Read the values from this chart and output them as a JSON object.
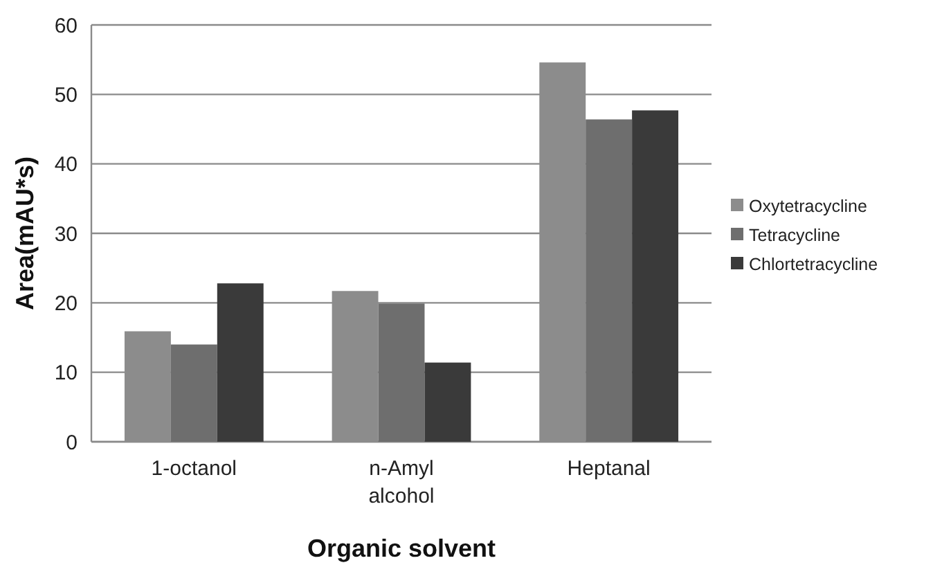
{
  "chart_data": {
    "type": "bar",
    "xlabel": "Organic solvent",
    "ylabel": "Area(mAU*s)",
    "categories": [
      "1-octanol",
      "n-Amyl alcohol",
      "Heptanal"
    ],
    "series": [
      {
        "name": "Oxytetracycline",
        "color": "#8c8c8c",
        "values": [
          15.9,
          21.7,
          54.6
        ]
      },
      {
        "name": "Tetracycline",
        "color": "#6e6e6e",
        "values": [
          14,
          19.9,
          46.4
        ]
      },
      {
        "name": "Chlortetracycline",
        "color": "#3a3a3a",
        "values": [
          22.8,
          11.4,
          47.7
        ]
      }
    ],
    "ylim": [
      0,
      60
    ],
    "yticks": [
      0,
      10,
      20,
      30,
      40,
      50,
      60
    ],
    "grid": "y",
    "legend": "right"
  }
}
